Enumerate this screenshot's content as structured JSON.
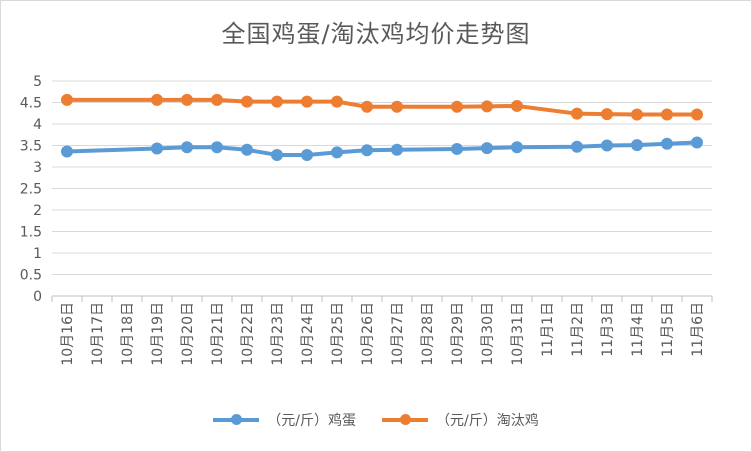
{
  "chart_data": {
    "type": "line",
    "title": "全国鸡蛋/淘汰鸡均价走势图",
    "categories": [
      "10月16日",
      "10月17日",
      "10月18日",
      "10月19日",
      "10月20日",
      "10月21日",
      "10月22日",
      "10月23日",
      "10月24日",
      "10月25日",
      "10月26日",
      "10月27日",
      "10月28日",
      "10月29日",
      "10月30日",
      "10月31日",
      "11月1日",
      "11月2日",
      "11月3日",
      "11月4日",
      "11月5日",
      "11月6日"
    ],
    "y_ticks": [
      "0",
      "0.5",
      "1",
      "1.5",
      "2",
      "2.5",
      "3",
      "3.5",
      "4",
      "4.5",
      "5"
    ],
    "ylim": [
      0,
      5
    ],
    "grid": true,
    "legend_position": "bottom",
    "series": [
      {
        "name": "（元/斤）鸡蛋",
        "color": "#5b9bd5",
        "values": [
          3.36,
          null,
          null,
          3.43,
          3.46,
          3.46,
          3.4,
          3.28,
          3.28,
          3.34,
          3.39,
          3.4,
          null,
          3.42,
          3.44,
          3.46,
          null,
          3.47,
          3.5,
          3.51,
          3.54,
          3.57
        ]
      },
      {
        "name": "（元/斤）淘汰鸡",
        "color": "#ed7d31",
        "values": [
          4.56,
          null,
          null,
          4.56,
          4.56,
          4.56,
          4.52,
          4.52,
          4.52,
          4.52,
          4.4,
          4.4,
          null,
          4.4,
          4.41,
          4.42,
          null,
          4.24,
          4.23,
          4.22,
          4.22,
          4.22
        ]
      }
    ]
  }
}
